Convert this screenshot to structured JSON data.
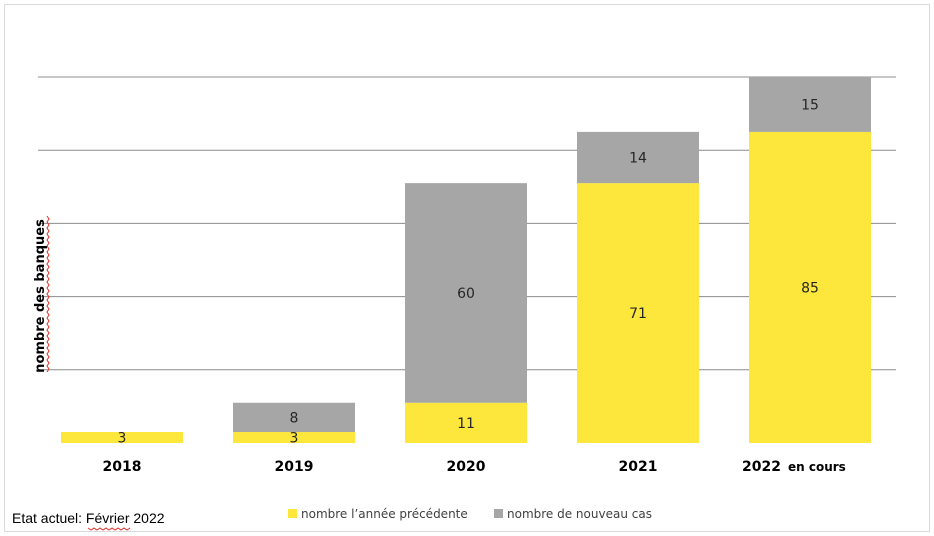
{
  "chart_data": {
    "type": "bar",
    "stacked": true,
    "categories": [
      "2018",
      "2019",
      "2020",
      "2021",
      "2022"
    ],
    "category_suffix": [
      "",
      "",
      "",
      "",
      "en cours"
    ],
    "series": [
      {
        "name": "nombre l’année précédente",
        "color": "#fde73c",
        "values": [
          3,
          3,
          11,
          71,
          85
        ]
      },
      {
        "name": "nombre de nouveau cas",
        "color": "#a6a6a6",
        "values": [
          0,
          8,
          60,
          14,
          15
        ]
      }
    ],
    "ylabel": "nombre des banques",
    "xlabel": "",
    "ylim": [
      0,
      100
    ],
    "gridlines": [
      20,
      40,
      60,
      80,
      100
    ],
    "grid": true,
    "legend_position": "bottom"
  },
  "footnote": "Etat actuel: Février 2022"
}
